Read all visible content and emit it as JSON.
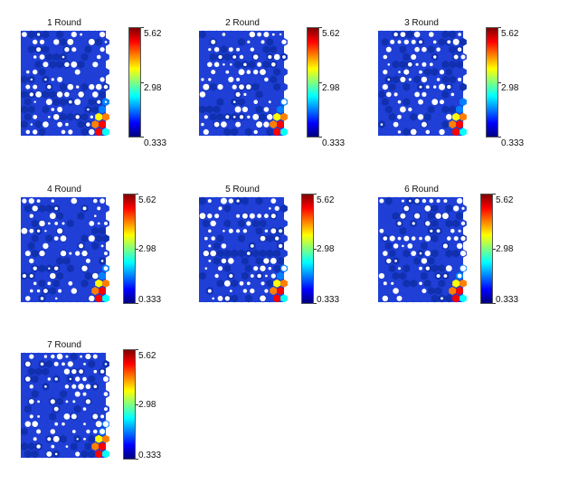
{
  "chart_data": [
    {
      "type": "heatmap",
      "title": "1 Round",
      "colorbar": {
        "max": "5.62",
        "mid": "2.98",
        "min": "0.333"
      }
    },
    {
      "type": "heatmap",
      "title": "2 Round",
      "colorbar": {
        "max": "5.62",
        "mid": "2.98",
        "min": "0.333"
      }
    },
    {
      "type": "heatmap",
      "title": "3 Round",
      "colorbar": {
        "max": "5.62",
        "mid": "2.98",
        "min": "0.333"
      }
    },
    {
      "type": "heatmap",
      "title": "4 Round",
      "colorbar": {
        "max": "5.62",
        "mid": "2.98",
        "min": "0.333"
      }
    },
    {
      "type": "heatmap",
      "title": "5 Round",
      "colorbar": {
        "max": "5.62",
        "mid": "2.98",
        "min": "0.333"
      }
    },
    {
      "type": "heatmap",
      "title": "6 Round",
      "colorbar": {
        "max": "5.62",
        "mid": "2.98",
        "min": "0.333"
      }
    },
    {
      "type": "heatmap",
      "title": "7 Round",
      "colorbar": {
        "max": "5.62",
        "mid": "2.98",
        "min": "0.333"
      }
    }
  ],
  "colors": {
    "map_base": "#1f3fd6",
    "map_dark": "#1030b0",
    "hole": "#ffffff",
    "colormap": [
      "#00007f",
      "#0000ff",
      "#0080ff",
      "#00ffff",
      "#80ff80",
      "#ffff00",
      "#ff8000",
      "#ff0000",
      "#7f0000"
    ]
  }
}
